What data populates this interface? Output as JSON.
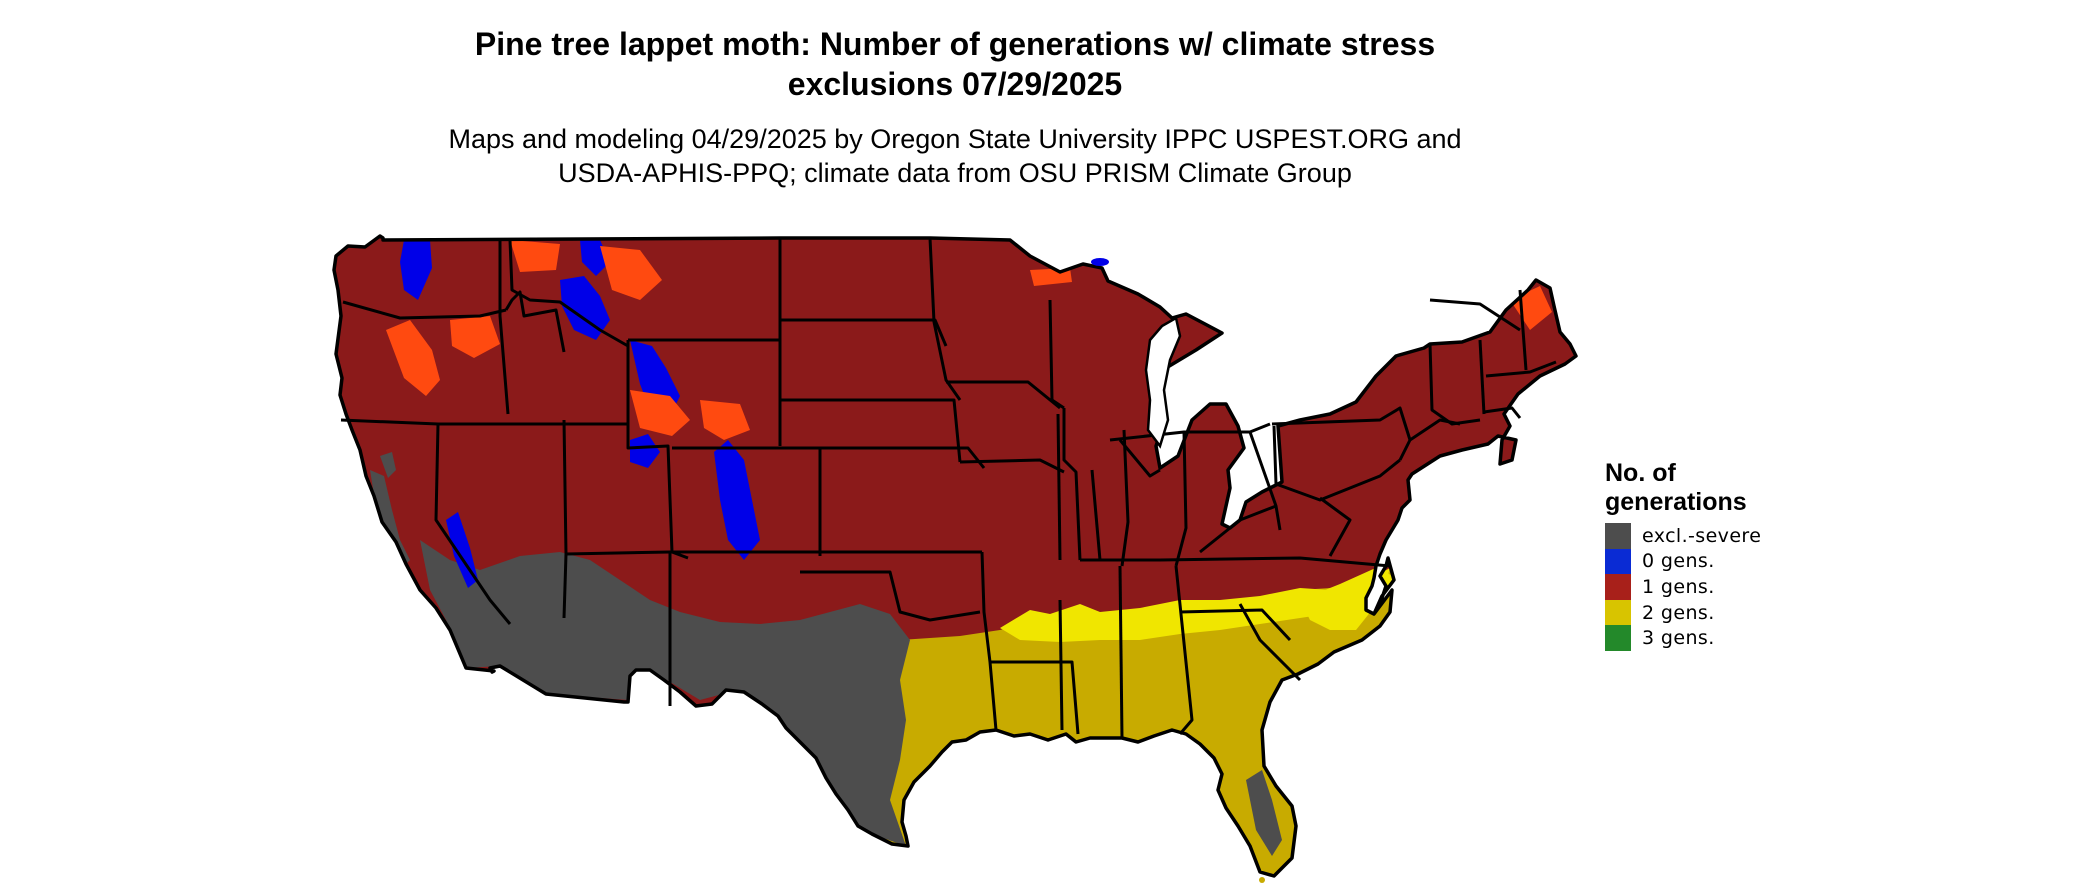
{
  "title": {
    "line1": "Pine tree lappet moth: Number of generations w/ climate stress",
    "line2": "exclusions 07/29/2025"
  },
  "subtitle": {
    "line1": "Maps and modeling 04/29/2025 by Oregon State University IPPC USPEST.ORG and",
    "line2": "USDA-APHIS-PPQ; climate data from OSU PRISM Climate Group"
  },
  "legend": {
    "title_line1": "No. of",
    "title_line2": "generations",
    "items": [
      {
        "label": "excl.-severe",
        "color": "#4d4d4d"
      },
      {
        "label": "0 gens.",
        "color": "#0a2bd4"
      },
      {
        "label": "1 gens.",
        "color": "#a8201a"
      },
      {
        "label": "2 gens.",
        "color": "#d8c400"
      },
      {
        "label": "3 gens.",
        "color": "#23892a"
      }
    ]
  },
  "map_colors": {
    "base": "#8b1a1a",
    "excluded": "#4d4d4d",
    "zero_gens": "#0000e8",
    "high_elev": "#ff4a10",
    "two_gens": "#c8ab00",
    "two_gens_light": "#f0e600",
    "boundary": "#000000"
  }
}
